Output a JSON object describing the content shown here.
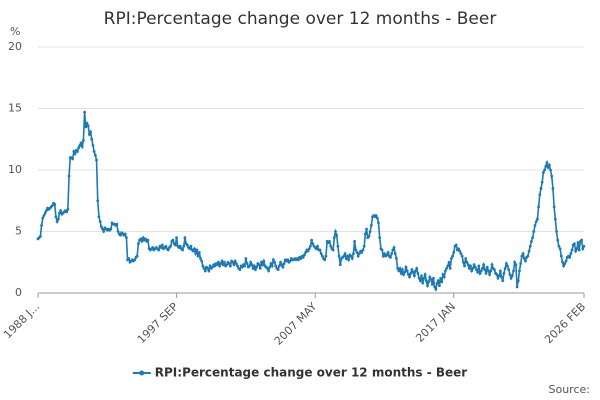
{
  "chart_data": {
    "type": "line",
    "title": "RPI:Percentage change over 12 months - Beer",
    "y_unit": "%",
    "source_label": "Source:",
    "categories": [
      "1988 J...",
      null,
      null,
      null,
      null,
      null,
      null,
      null,
      null,
      null,
      null,
      null,
      null,
      null,
      null,
      null,
      null,
      null,
      null,
      null,
      null,
      null,
      null,
      null,
      null,
      null,
      null,
      null,
      null,
      null,
      null,
      null,
      null,
      null,
      null,
      null,
      null,
      null,
      null,
      null,
      null,
      null,
      null,
      null,
      null,
      null,
      null,
      null,
      null,
      null,
      null,
      null,
      null,
      null,
      null,
      null,
      null,
      null,
      null,
      null,
      null,
      null,
      null,
      null,
      null,
      null,
      null,
      null,
      null,
      null,
      null,
      null,
      null,
      null,
      null,
      null,
      null,
      null,
      null,
      null,
      null,
      null,
      null,
      null,
      null,
      null,
      null,
      null,
      null,
      null,
      null,
      null,
      null,
      null,
      null,
      null,
      null,
      null,
      null,
      null,
      null,
      null,
      null,
      null,
      null,
      null,
      null,
      null,
      null,
      null,
      null,
      null,
      null,
      null,
      null,
      null,
      "1997 SEP",
      null,
      null,
      null,
      null,
      null,
      null,
      null,
      null,
      null,
      null,
      null,
      null,
      null,
      null,
      null,
      null,
      null,
      null,
      null,
      null,
      null,
      null,
      null,
      null,
      null,
      null,
      null,
      null,
      null,
      null,
      null,
      null,
      null,
      null,
      null,
      null,
      null,
      null,
      null,
      null,
      null,
      null,
      null,
      null,
      null,
      null,
      null,
      null,
      null,
      null,
      null,
      null,
      null,
      null,
      null,
      null,
      null,
      null,
      null,
      null,
      null,
      null,
      null,
      null,
      null,
      null,
      null,
      null,
      null,
      null,
      null,
      null,
      null,
      null,
      null,
      null,
      null,
      null,
      null,
      null,
      null,
      null,
      null,
      null,
      null,
      null,
      null,
      null,
      null,
      null,
      null,
      null,
      null,
      null,
      null,
      null,
      null,
      null,
      null,
      null,
      null,
      null,
      null,
      null,
      null,
      null,
      null,
      null,
      null,
      null,
      null,
      null,
      null,
      null,
      null,
      "2007 MAY",
      null,
      null,
      null,
      null,
      null,
      null,
      null,
      null,
      null,
      null,
      null,
      null,
      null,
      null,
      null,
      null,
      null,
      null,
      null,
      null,
      null,
      null,
      null,
      null,
      null,
      null,
      null,
      null,
      null,
      null,
      null,
      null,
      null,
      null,
      null,
      null,
      null,
      null,
      null,
      null,
      null,
      null,
      null,
      null,
      null,
      null,
      null,
      null,
      null,
      null,
      null,
      null,
      null,
      null,
      null,
      null,
      null,
      null,
      null,
      null,
      null,
      null,
      null,
      null,
      null,
      null,
      null,
      null,
      null,
      null,
      null,
      null,
      null,
      null,
      null,
      null,
      null,
      null,
      null,
      null,
      null,
      null,
      null,
      null,
      null,
      null,
      null,
      null,
      null,
      null,
      null,
      null,
      null,
      null,
      null,
      null,
      null,
      null,
      null,
      null,
      null,
      null,
      null,
      null,
      null,
      null,
      null,
      null,
      null,
      null,
      null,
      null,
      null,
      null,
      null,
      "2017 JAN",
      null,
      null,
      null,
      null,
      null,
      null,
      null,
      null,
      null,
      null,
      null,
      null,
      null,
      null,
      null,
      null,
      null,
      null,
      null,
      null,
      null,
      null,
      null,
      null,
      null,
      null,
      null,
      null,
      null,
      null,
      null,
      null,
      null,
      null,
      null,
      null,
      null,
      null,
      null,
      null,
      null,
      null,
      null,
      null,
      null,
      null,
      null,
      null,
      null,
      null,
      null,
      null,
      null,
      null,
      null,
      null,
      null,
      null,
      null,
      null,
      null,
      null,
      null,
      null,
      null,
      null,
      null,
      null,
      null,
      null,
      null,
      null,
      null,
      null,
      null,
      null,
      null,
      null,
      null,
      null,
      null,
      null,
      null,
      null,
      null,
      null,
      null,
      null,
      null,
      null,
      null,
      null,
      null,
      null,
      null,
      null,
      null,
      null,
      null,
      null,
      null,
      null,
      null,
      null,
      null,
      null,
      null,
      null,
      "2026 FEB"
    ],
    "series": [
      {
        "name": "RPI:Percentage change over 12 months - Beer",
        "color": "#1c7ab5",
        "values": [
          4.4,
          4.5,
          4.6,
          5.5,
          6.1,
          6.3,
          6.5,
          6.7,
          6.9,
          6.8,
          6.9,
          7.0,
          7.1,
          7.3,
          7.2,
          6.2,
          5.8,
          6.0,
          6.5,
          6.7,
          6.4,
          6.5,
          6.6,
          6.7,
          6.6,
          6.8,
          9.5,
          11.0,
          11.0,
          10.9,
          11.5,
          11.3,
          11.6,
          11.5,
          11.8,
          12.0,
          12.2,
          11.9,
          12.4,
          14.7,
          13.5,
          13.8,
          13.6,
          12.9,
          13.1,
          12.5,
          12.0,
          11.5,
          11.2,
          10.8,
          7.5,
          6.2,
          5.8,
          5.4,
          5.2,
          5.0,
          5.3,
          5.2,
          5.1,
          5.2,
          5.1,
          5.2,
          5.7,
          5.6,
          5.6,
          5.5,
          5.6,
          5.0,
          4.8,
          4.7,
          4.9,
          4.8,
          4.7,
          4.8,
          4.5,
          2.7,
          2.8,
          2.5,
          2.6,
          2.7,
          2.6,
          2.7,
          2.9,
          3.0,
          4.0,
          4.3,
          4.4,
          4.2,
          4.5,
          4.3,
          4.4,
          4.2,
          4.3,
          3.6,
          3.5,
          3.6,
          3.7,
          3.5,
          3.6,
          3.7,
          3.6,
          3.5,
          3.8,
          3.7,
          3.9,
          3.6,
          3.7,
          3.8,
          3.6,
          3.5,
          3.7,
          3.8,
          4.2,
          4.3,
          4.0,
          3.9,
          4.5,
          3.8,
          3.7,
          3.8,
          3.6,
          3.5,
          3.8,
          4.5,
          4.0,
          3.9,
          3.7,
          3.6,
          3.8,
          3.5,
          3.4,
          3.6,
          3.2,
          3.5,
          3.0,
          3.3,
          2.8,
          2.6,
          2.2,
          2.0,
          1.8,
          2.1,
          2.0,
          1.8,
          2.2,
          2.0,
          2.1,
          2.3,
          2.2,
          2.4,
          2.3,
          2.5,
          2.2,
          2.4,
          2.6,
          2.3,
          2.5,
          2.2,
          2.3,
          2.5,
          2.4,
          2.2,
          2.6,
          2.5,
          2.3,
          2.6,
          2.4,
          2.2,
          2.0,
          1.9,
          2.2,
          2.1,
          2.3,
          2.2,
          2.8,
          2.4,
          2.1,
          2.2,
          2.5,
          2.3,
          2.0,
          2.2,
          1.9,
          2.1,
          2.4,
          2.3,
          2.0,
          2.5,
          2.3,
          2.6,
          2.2,
          2.1,
          2.0,
          1.8,
          2.1,
          2.4,
          2.2,
          2.7,
          2.5,
          2.2,
          2.0,
          1.9,
          2.2,
          2.5,
          2.3,
          2.1,
          2.4,
          2.7,
          2.6,
          2.7,
          2.5,
          2.6,
          2.8,
          2.7,
          2.7,
          2.8,
          2.7,
          2.8,
          2.7,
          2.9,
          2.8,
          3.0,
          2.9,
          3.1,
          3.3,
          3.5,
          3.4,
          3.6,
          3.8,
          4.3,
          4.0,
          3.8,
          3.7,
          3.6,
          3.8,
          3.5,
          3.5,
          3.2,
          3.0,
          2.8,
          2.7,
          3.0,
          4.2,
          4.1,
          4.2,
          3.8,
          3.6,
          3.5,
          4.5,
          5.0,
          4.7,
          3.8,
          3.0,
          2.3,
          2.8,
          2.9,
          3.0,
          3.2,
          2.8,
          3.0,
          2.7,
          3.1,
          3.0,
          2.8,
          3.2,
          4.2,
          3.5,
          3.3,
          3.0,
          3.2,
          3.4,
          3.3,
          3.5,
          3.8,
          4.8,
          5.2,
          4.5,
          4.6,
          5.0,
          5.5,
          6.2,
          6.3,
          6.2,
          6.3,
          6.1,
          5.7,
          4.5,
          3.6,
          3.5,
          3.0,
          3.2,
          3.0,
          3.1,
          3.3,
          3.0,
          2.9,
          3.2,
          3.5,
          3.7,
          3.2,
          2.8,
          2.0,
          1.8,
          2.0,
          1.6,
          1.9,
          1.5,
          1.7,
          2.1,
          1.8,
          1.5,
          1.3,
          1.6,
          1.9,
          1.7,
          1.4,
          1.8,
          2.0,
          1.6,
          1.2,
          1.0,
          1.4,
          0.8,
          1.2,
          1.5,
          1.0,
          0.6,
          0.9,
          1.3,
          1.1,
          0.7,
          1.2,
          0.5,
          0.3,
          0.8,
          1.0,
          0.6,
          1.2,
          0.9,
          1.5,
          1.3,
          1.8,
          2.0,
          2.2,
          2.5,
          2.0,
          2.8,
          3.0,
          3.3,
          3.8,
          3.9,
          3.5,
          3.6,
          3.4,
          3.2,
          3.0,
          2.5,
          2.2,
          2.8,
          2.5,
          2.3,
          2.0,
          2.2,
          1.8,
          2.0,
          2.3,
          2.1,
          1.9,
          1.7,
          2.2,
          1.6,
          1.8,
          2.0,
          2.3,
          1.9,
          1.6,
          2.1,
          1.8,
          1.5,
          1.8,
          2.3,
          2.0,
          1.9,
          1.6,
          1.5,
          1.2,
          1.4,
          1.8,
          1.3,
          1.0,
          1.6,
          2.0,
          2.4,
          2.2,
          1.9,
          1.5,
          1.2,
          1.4,
          1.8,
          2.5,
          2.3,
          0.5,
          1.0,
          1.8,
          2.4,
          3.0,
          3.2,
          2.8,
          2.6,
          2.9,
          3.0,
          3.4,
          3.8,
          4.2,
          4.5,
          5.0,
          5.5,
          5.8,
          6.0,
          7.0,
          8.0,
          8.5,
          9.0,
          9.8,
          10.0,
          10.3,
          10.6,
          10.2,
          10.4,
          10.0,
          9.5,
          8.5,
          7.0,
          6.0,
          5.0,
          4.3,
          3.8,
          3.6,
          3.0,
          2.5,
          2.2,
          2.4,
          2.6,
          2.9,
          3.0,
          2.9,
          3.2,
          3.5,
          3.9,
          4.0,
          3.4,
          3.6,
          4.1,
          3.5,
          4.2,
          4.3,
          3.6,
          3.8
        ]
      }
    ],
    "ylim": [
      0,
      20
    ],
    "yticks": [
      0,
      5,
      10,
      15,
      20
    ],
    "grid": true,
    "legend": "bottom"
  }
}
